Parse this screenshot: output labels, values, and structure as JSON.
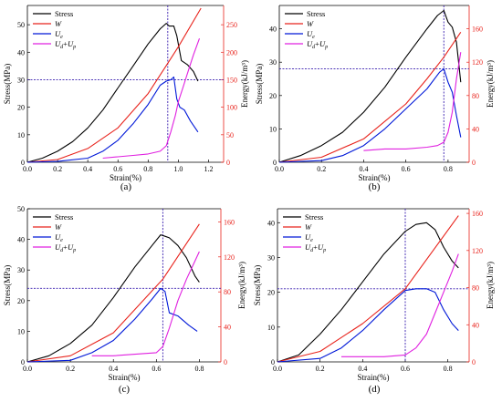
{
  "panels_order": [
    "a",
    "b",
    "c",
    "d"
  ],
  "colors": {
    "stress": "#000000",
    "W": "#e8231c",
    "Ue": "#0018d8",
    "UdUp": "#e020e0",
    "ref": "#3a1fb0",
    "energy_axis": "#e8231c"
  },
  "chart_data": [
    {
      "panel_label": "(a)",
      "type": "line",
      "xlabel": "Strain(%)",
      "ylabel_left": "Stress(MPa)",
      "ylabel_right": "Energy(kJ/m³)",
      "xlim": [
        0,
        1.3
      ],
      "ylim_left": [
        0,
        57
      ],
      "ylim_right": [
        0,
        285
      ],
      "xticks": [
        "0.0",
        "0.2",
        "0.4",
        "0.6",
        "0.8",
        "1.0",
        "1.2"
      ],
      "yticks_left": [
        "0",
        "10",
        "20",
        "30",
        "40",
        "50"
      ],
      "yticks_right": [
        "0",
        "50",
        "100",
        "150",
        "200",
        "250"
      ],
      "legend_position": "top-left",
      "legend": [
        "Stress",
        "W",
        "Ue",
        "Ud+Up"
      ],
      "ref_x": 0.93,
      "ref_y": 30,
      "series": [
        {
          "name": "Stress",
          "axis": "left",
          "x": [
            0,
            0.1,
            0.2,
            0.3,
            0.4,
            0.5,
            0.6,
            0.7,
            0.8,
            0.88,
            0.92,
            0.94,
            0.97,
            0.99,
            1.02,
            1.06,
            1.1,
            1.13
          ],
          "y": [
            0,
            1.5,
            4,
            7.5,
            12.5,
            19,
            27,
            35,
            43,
            48.5,
            50.5,
            49.5,
            49.5,
            46,
            37,
            35.5,
            33,
            29.5
          ]
        },
        {
          "name": "W",
          "axis": "left",
          "x": [
            0,
            0.2,
            0.4,
            0.6,
            0.8,
            0.93,
            1.0,
            1.15
          ],
          "y": [
            0,
            1,
            5,
            12.5,
            25,
            36,
            42,
            56
          ]
        },
        {
          "name": "Ue",
          "axis": "left",
          "x": [
            0,
            0.2,
            0.4,
            0.5,
            0.6,
            0.7,
            0.8,
            0.88,
            0.92,
            0.95,
            0.97,
            0.99,
            1.01,
            1.04,
            1.08,
            1.13
          ],
          "y": [
            0,
            0.3,
            1.5,
            4,
            8,
            14,
            21,
            28,
            29.5,
            30,
            31,
            23,
            20,
            19,
            15,
            11
          ]
        },
        {
          "name": "Ud+Up",
          "axis": "left",
          "x": [
            0.5,
            0.6,
            0.7,
            0.8,
            0.88,
            0.92,
            0.95,
            0.98,
            1.0,
            1.03,
            1.07,
            1.1,
            1.14
          ],
          "y": [
            1.5,
            2,
            2.5,
            3,
            4,
            6,
            11,
            17,
            22,
            27,
            34,
            39,
            45
          ]
        }
      ]
    },
    {
      "panel_label": "(b)",
      "type": "line",
      "xlabel": "Strain(%)",
      "ylabel_left": "Stress(MPa)",
      "ylabel_right": "Energy(kJ/m³)",
      "xlim": [
        0,
        0.9
      ],
      "ylim_left": [
        0,
        47
      ],
      "ylim_right": [
        0,
        188
      ],
      "xticks": [
        "0.0",
        "0.2",
        "0.4",
        "0.6",
        "0.8"
      ],
      "yticks_left": [
        "0",
        "10",
        "20",
        "30",
        "40"
      ],
      "yticks_right": [
        "0",
        "40",
        "80",
        "120",
        "160"
      ],
      "legend_position": "top-left",
      "legend": [
        "Stress",
        "W",
        "Ue",
        "Ud+Up"
      ],
      "ref_x": 0.78,
      "ref_y": 28,
      "series": [
        {
          "name": "Stress",
          "axis": "left",
          "x": [
            0,
            0.1,
            0.2,
            0.3,
            0.4,
            0.5,
            0.6,
            0.7,
            0.75,
            0.78,
            0.8,
            0.82,
            0.84,
            0.86
          ],
          "y": [
            0,
            2,
            5,
            9,
            15,
            22.5,
            31.5,
            40,
            44,
            45.5,
            42,
            40.5,
            36,
            24
          ]
        },
        {
          "name": "W",
          "axis": "left",
          "x": [
            0,
            0.2,
            0.4,
            0.6,
            0.7,
            0.78,
            0.86
          ],
          "y": [
            0,
            1.5,
            7,
            17.5,
            25,
            31.5,
            39
          ]
        },
        {
          "name": "Ue",
          "axis": "left",
          "x": [
            0,
            0.2,
            0.3,
            0.4,
            0.5,
            0.6,
            0.7,
            0.76,
            0.78,
            0.8,
            0.82,
            0.84,
            0.86
          ],
          "y": [
            0,
            0.5,
            2,
            5,
            10,
            16,
            22,
            27,
            28,
            24,
            21,
            14,
            7.5
          ]
        },
        {
          "name": "Ud+Up",
          "axis": "left",
          "x": [
            0.4,
            0.5,
            0.6,
            0.7,
            0.75,
            0.78,
            0.8,
            0.82,
            0.84,
            0.86
          ],
          "y": [
            3.5,
            4,
            4,
            4.5,
            5,
            6,
            9,
            15,
            25,
            33
          ]
        }
      ]
    },
    {
      "panel_label": "(c)",
      "type": "line",
      "xlabel": "Strain(%)",
      "ylabel_left": "Stress(MPa)",
      "ylabel_right": "Energy(kJ/m³)",
      "xlim": [
        0,
        0.9
      ],
      "ylim_left": [
        0,
        50
      ],
      "ylim_right": [
        0,
        175
      ],
      "xticks": [
        "0.0",
        "0.2",
        "0.4",
        "0.6",
        "0.8"
      ],
      "yticks_left": [
        "0",
        "10",
        "20",
        "30",
        "40",
        "50"
      ],
      "yticks_right": [
        "0",
        "40",
        "80",
        "120",
        "160"
      ],
      "legend_position": "top-left",
      "legend": [
        "Stress",
        "W",
        "Ue",
        "Ud+Up"
      ],
      "ref_x": 0.63,
      "ref_y": 24,
      "series": [
        {
          "name": "Stress",
          "axis": "left",
          "x": [
            0,
            0.1,
            0.2,
            0.3,
            0.4,
            0.5,
            0.58,
            0.62,
            0.64,
            0.66,
            0.7,
            0.74,
            0.78,
            0.8
          ],
          "y": [
            0,
            2,
            6,
            12,
            21,
            31,
            38,
            41.5,
            41,
            40.5,
            38,
            34,
            28,
            26
          ]
        },
        {
          "name": "W",
          "axis": "left",
          "x": [
            0,
            0.2,
            0.4,
            0.63,
            0.8
          ],
          "y": [
            0,
            2,
            9.5,
            27,
            45
          ]
        },
        {
          "name": "Ue",
          "axis": "left",
          "x": [
            0,
            0.2,
            0.3,
            0.4,
            0.5,
            0.58,
            0.62,
            0.64,
            0.66,
            0.7,
            0.75,
            0.79
          ],
          "y": [
            0,
            0.5,
            3,
            7,
            14,
            20.5,
            24,
            23,
            16,
            15,
            12,
            10
          ]
        },
        {
          "name": "Ud+Up",
          "axis": "left",
          "x": [
            0.3,
            0.4,
            0.5,
            0.6,
            0.63,
            0.66,
            0.7,
            0.74,
            0.78,
            0.8
          ],
          "y": [
            2,
            2,
            2.5,
            3,
            5,
            11,
            20,
            27,
            33,
            36
          ]
        }
      ]
    },
    {
      "panel_label": "(d)",
      "type": "line",
      "xlabel": "Strain(%)",
      "ylabel_left": "Stress(MPa)",
      "ylabel_right": "Energy(kJ/m³)",
      "xlim": [
        0,
        0.9
      ],
      "ylim_left": [
        0,
        44
      ],
      "ylim_right": [
        0,
        165
      ],
      "xticks": [
        "0.0",
        "0.2",
        "0.4",
        "0.6",
        "0.8"
      ],
      "yticks_left": [
        "0",
        "10",
        "20",
        "30",
        "40"
      ],
      "yticks_right": [
        "0",
        "40",
        "80",
        "120",
        "160"
      ],
      "legend_position": "top-left",
      "legend": [
        "Stress",
        "W",
        "Ue",
        "Ud+Up"
      ],
      "ref_x": 0.6,
      "ref_y": 21,
      "series": [
        {
          "name": "Stress",
          "axis": "left",
          "x": [
            0,
            0.1,
            0.15,
            0.2,
            0.3,
            0.4,
            0.5,
            0.6,
            0.65,
            0.7,
            0.74,
            0.78,
            0.82,
            0.85
          ],
          "y": [
            0,
            2,
            5,
            8,
            15,
            23,
            31,
            37.5,
            39.5,
            40,
            38,
            33,
            29,
            27
          ]
        },
        {
          "name": "W",
          "axis": "left",
          "x": [
            0,
            0.2,
            0.4,
            0.6,
            0.85
          ],
          "y": [
            0,
            3,
            11,
            21,
            42
          ]
        },
        {
          "name": "Ue",
          "axis": "left",
          "x": [
            0,
            0.2,
            0.3,
            0.4,
            0.5,
            0.6,
            0.65,
            0.7,
            0.74,
            0.78,
            0.82,
            0.85
          ],
          "y": [
            0,
            1,
            4,
            9,
            15,
            20.5,
            21,
            21,
            20,
            15,
            11,
            9
          ]
        },
        {
          "name": "Ud+Up",
          "axis": "left",
          "x": [
            0.3,
            0.4,
            0.5,
            0.6,
            0.65,
            0.7,
            0.74,
            0.78,
            0.82,
            0.85
          ],
          "y": [
            1.5,
            1.5,
            1.5,
            2,
            4,
            8,
            14,
            20,
            26,
            31
          ]
        }
      ]
    }
  ]
}
